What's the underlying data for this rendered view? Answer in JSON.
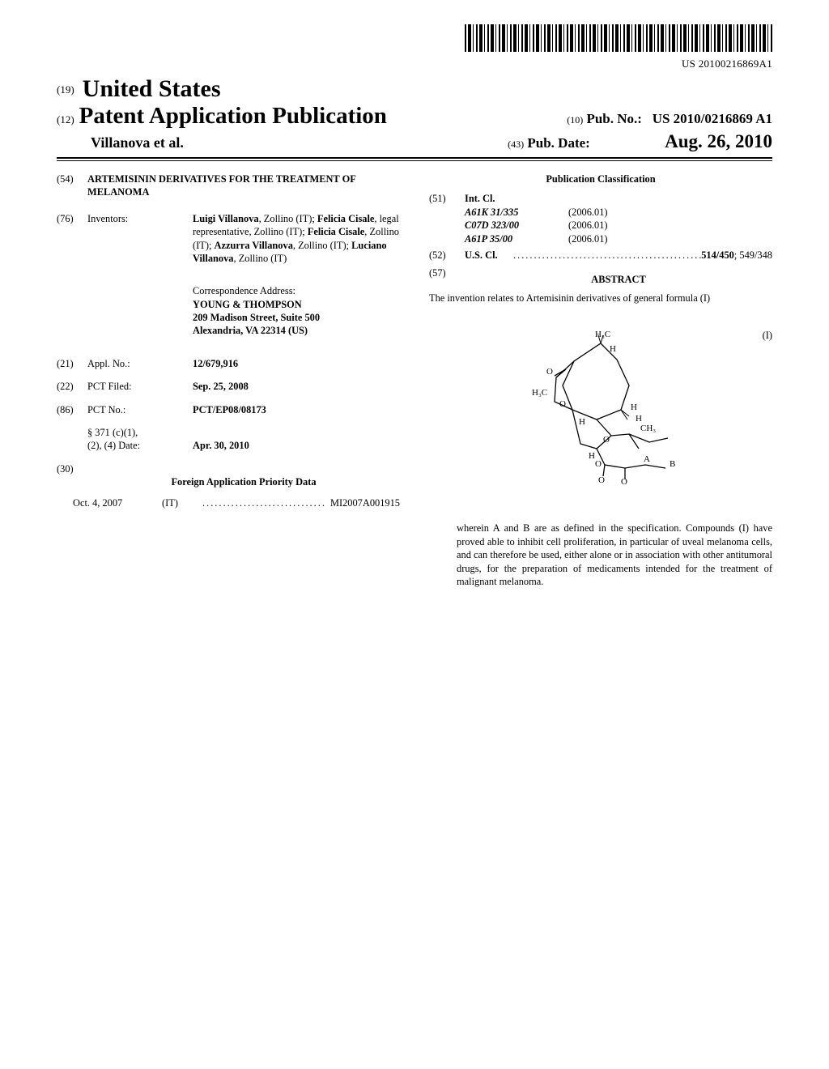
{
  "barcode_number": "US 20100216869A1",
  "header": {
    "prefix19": "(19)",
    "country": "United States",
    "prefix12": "(12)",
    "pub_kind": "Patent Application Publication",
    "authors": "Villanova et al.",
    "prefix10": "(10)",
    "pubno_label": "Pub. No.:",
    "pubno": "US 2010/0216869 A1",
    "prefix43": "(43)",
    "pubdate_label": "Pub. Date:",
    "pubdate": "Aug. 26, 2010"
  },
  "left": {
    "n54": "(54)",
    "title": "ARTEMISININ DERIVATIVES FOR THE TREATMENT OF MELANOMA",
    "n76": "(76)",
    "inventors_label": "Inventors:",
    "inventors_html": "Luigi Villanova, Zollino (IT); Felicia Cisale, legal representative, Zollino (IT); Felicia Cisale, Zollino (IT); Azzurra Villanova, Zollino (IT); Luciano Villanova, Zollino (IT)",
    "corr_label": "Correspondence Address:",
    "corr_name": "YOUNG & THOMPSON",
    "corr_addr1": "209 Madison Street, Suite 500",
    "corr_addr2": "Alexandria, VA 22314 (US)",
    "n21": "(21)",
    "appl_label": "Appl. No.:",
    "appl_no": "12/679,916",
    "n22": "(22)",
    "pct_filed_label": "PCT Filed:",
    "pct_filed": "Sep. 25, 2008",
    "n86": "(86)",
    "pct_no_label": "PCT No.:",
    "pct_no": "PCT/EP08/08173",
    "s371a": "§ 371 (c)(1),",
    "s371b": "(2), (4) Date:",
    "s371_date": "Apr. 30, 2010",
    "n30": "(30)",
    "priority_hdr": "Foreign Application Priority Data",
    "priority_date": "Oct. 4, 2007",
    "priority_cc": "(IT)",
    "priority_num": "MI2007A001915"
  },
  "right": {
    "class_hdr": "Publication Classification",
    "n51": "(51)",
    "intcl_label": "Int. Cl.",
    "intcl": [
      {
        "code": "A61K 31/335",
        "ver": "(2006.01)"
      },
      {
        "code": "C07D 323/00",
        "ver": "(2006.01)"
      },
      {
        "code": "A61P 35/00",
        "ver": "(2006.01)"
      }
    ],
    "n52": "(52)",
    "uscl_label": "U.S. Cl.",
    "uscl_bold": "514/450",
    "uscl_rest": "; 549/348",
    "n57": "(57)",
    "abstract_label": "ABSTRACT",
    "abstract_p1": "The invention relates to Artemisinin derivatives of general formula (I)",
    "formula_tag": "(I)",
    "abstract_p2": "wherein A and B are as defined in the specification. Compounds (I) have proved able to inhibit cell proliferation, in particular of uveal melanoma cells, and can therefore be used, either alone or in association with other antitumoral drugs, for the preparation of medicaments intended for the treatment of malignant melanoma.",
    "mol_labels": {
      "h3c1": "H₃C",
      "h1": "H",
      "o1": "O",
      "h3c2": "H₃C",
      "o2": "O",
      "h2": "H",
      "h3": "H",
      "ch3": "CH₃",
      "o3": "O",
      "h4": "H",
      "h5": "H",
      "o4": "O",
      "a": "A",
      "b": "B",
      "o5": "O",
      "o6": "O"
    }
  },
  "colors": {
    "text": "#000000",
    "bg": "#ffffff"
  }
}
